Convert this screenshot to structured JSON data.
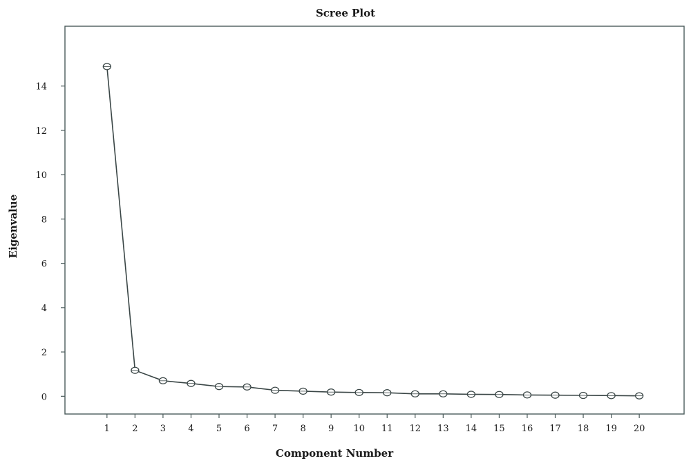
{
  "chart_data": {
    "type": "line",
    "title": "Scree Plot",
    "xlabel": "Component Number",
    "ylabel": "Eigenvalue",
    "x": [
      1,
      2,
      3,
      4,
      5,
      6,
      7,
      8,
      9,
      10,
      11,
      12,
      13,
      14,
      15,
      16,
      17,
      18,
      19,
      20
    ],
    "series": [
      {
        "values": [
          14.88,
          1.17,
          0.7,
          0.58,
          0.44,
          0.42,
          0.27,
          0.23,
          0.19,
          0.17,
          0.16,
          0.11,
          0.11,
          0.09,
          0.08,
          0.06,
          0.05,
          0.04,
          0.03,
          0.02
        ]
      }
    ],
    "xticks": [
      "1",
      "2",
      "3",
      "4",
      "5",
      "6",
      "7",
      "8",
      "9",
      "10",
      "11",
      "12",
      "13",
      "14",
      "15",
      "16",
      "17",
      "18",
      "19",
      "20"
    ],
    "yticks": [
      "0",
      "2",
      "4",
      "6",
      "8",
      "10",
      "12",
      "14"
    ],
    "ylim": [
      -0.8,
      16.7
    ],
    "xlim": [
      -0.5,
      21.6
    ],
    "grid": false,
    "marker": "open-circle",
    "colors": {
      "frame": "#4a5a5a",
      "line": "#3a4646",
      "marker": "#3a4646",
      "text": "#1a1a1a"
    }
  }
}
